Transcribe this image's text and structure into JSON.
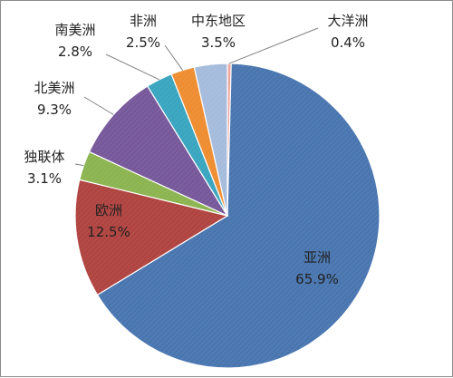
{
  "chart_data": {
    "type": "pie",
    "title": "",
    "start_angle_deg": 0,
    "direction": "clockwise",
    "slices": [
      {
        "name": "大洋洲",
        "value": 0.4,
        "value_label": "0.4%",
        "color": "#f0a49a"
      },
      {
        "name": "亚洲",
        "value": 65.9,
        "value_label": "65.9%",
        "color": "#4a76b0"
      },
      {
        "name": "欧洲",
        "value": 12.5,
        "value_label": "12.5%",
        "color": "#b04441"
      },
      {
        "name": "独联体",
        "value": 3.1,
        "value_label": "3.1%",
        "color": "#8cb450"
      },
      {
        "name": "北美洲",
        "value": 9.3,
        "value_label": "9.3%",
        "color": "#77599b"
      },
      {
        "name": "南美洲",
        "value": 2.8,
        "value_label": "2.8%",
        "color": "#3aa5bf"
      },
      {
        "name": "非洲",
        "value": 2.5,
        "value_label": "2.5%",
        "color": "#ee8d31"
      },
      {
        "name": "中东地区",
        "value": 3.5,
        "value_label": "3.5%",
        "color": "#a6bcdd"
      }
    ],
    "legend": "none",
    "data_labels": "category and value"
  }
}
